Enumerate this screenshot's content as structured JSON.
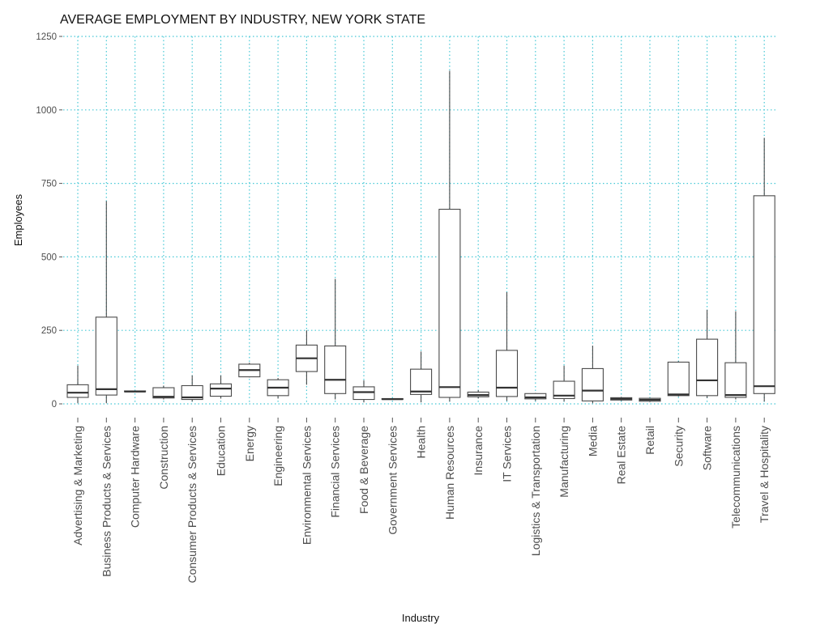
{
  "chart_data": {
    "type": "boxplot",
    "title": "AVERAGE EMPLOYMENT BY INDUSTRY, NEW YORK STATE",
    "xlabel": "Industry",
    "ylabel": "Employees",
    "ylim": [
      0,
      1250
    ],
    "yticks": [
      0,
      250,
      500,
      750,
      1000,
      1250
    ],
    "ytick_labels": [
      "0",
      "250",
      "500",
      "750",
      "1000",
      "1250"
    ],
    "grid": true,
    "grid_color": "#46c8d6",
    "box_stroke_color": "#4a4a4a",
    "categories": [
      "Advertising & Marketing",
      "Business Products & Services",
      "Computer Hardware",
      "Construction",
      "Consumer Products & Services",
      "Education",
      "Energy",
      "Engineering",
      "Environmental Services",
      "Financial Services",
      "Food & Beverage",
      "Government Services",
      "Health",
      "Human Resources",
      "Insurance",
      "IT Services",
      "Logistics & Transportation",
      "Manufacturing",
      "Media",
      "Real Estate",
      "Retail",
      "Security",
      "Software",
      "Telecommunications",
      "Travel & Hospitality"
    ],
    "boxes": [
      {
        "min": 2,
        "q1": 22,
        "median": 38,
        "q3": 65,
        "max": 130
      },
      {
        "min": 2,
        "q1": 30,
        "median": 50,
        "q3": 295,
        "max": 690
      },
      {
        "min": 42,
        "q1": 42,
        "median": 42,
        "q3": 44,
        "max": 45
      },
      {
        "min": 15,
        "q1": 20,
        "median": 24,
        "q3": 55,
        "max": 62
      },
      {
        "min": 8,
        "q1": 15,
        "median": 22,
        "q3": 62,
        "max": 97
      },
      {
        "min": 18,
        "q1": 26,
        "median": 52,
        "q3": 68,
        "max": 97
      },
      {
        "min": 90,
        "q1": 92,
        "median": 115,
        "q3": 135,
        "max": 140
      },
      {
        "min": 18,
        "q1": 28,
        "median": 55,
        "q3": 82,
        "max": 88
      },
      {
        "min": 65,
        "q1": 110,
        "median": 155,
        "q3": 200,
        "max": 250
      },
      {
        "min": 15,
        "q1": 35,
        "median": 82,
        "q3": 197,
        "max": 425
      },
      {
        "min": 5,
        "q1": 15,
        "median": 40,
        "q3": 58,
        "max": 80
      },
      {
        "min": 14,
        "q1": 15,
        "median": 16,
        "q3": 18,
        "max": 19
      },
      {
        "min": 5,
        "q1": 32,
        "median": 42,
        "q3": 118,
        "max": 178
      },
      {
        "min": 8,
        "q1": 22,
        "median": 57,
        "q3": 662,
        "max": 1133
      },
      {
        "min": 18,
        "q1": 24,
        "median": 30,
        "q3": 40,
        "max": 47
      },
      {
        "min": 10,
        "q1": 25,
        "median": 55,
        "q3": 182,
        "max": 380
      },
      {
        "min": 10,
        "q1": 17,
        "median": 22,
        "q3": 35,
        "max": 37
      },
      {
        "min": 8,
        "q1": 18,
        "median": 28,
        "q3": 77,
        "max": 130
      },
      {
        "min": 2,
        "q1": 10,
        "median": 45,
        "q3": 120,
        "max": 198
      },
      {
        "min": 10,
        "q1": 13,
        "median": 17,
        "q3": 21,
        "max": 24
      },
      {
        "min": 6,
        "q1": 9,
        "median": 14,
        "q3": 19,
        "max": 21
      },
      {
        "min": 25,
        "q1": 28,
        "median": 32,
        "q3": 142,
        "max": 145
      },
      {
        "min": 20,
        "q1": 28,
        "median": 80,
        "q3": 220,
        "max": 320
      },
      {
        "min": 15,
        "q1": 22,
        "median": 30,
        "q3": 140,
        "max": 315
      },
      {
        "min": 8,
        "q1": 35,
        "median": 60,
        "q3": 708,
        "max": 905
      }
    ]
  }
}
